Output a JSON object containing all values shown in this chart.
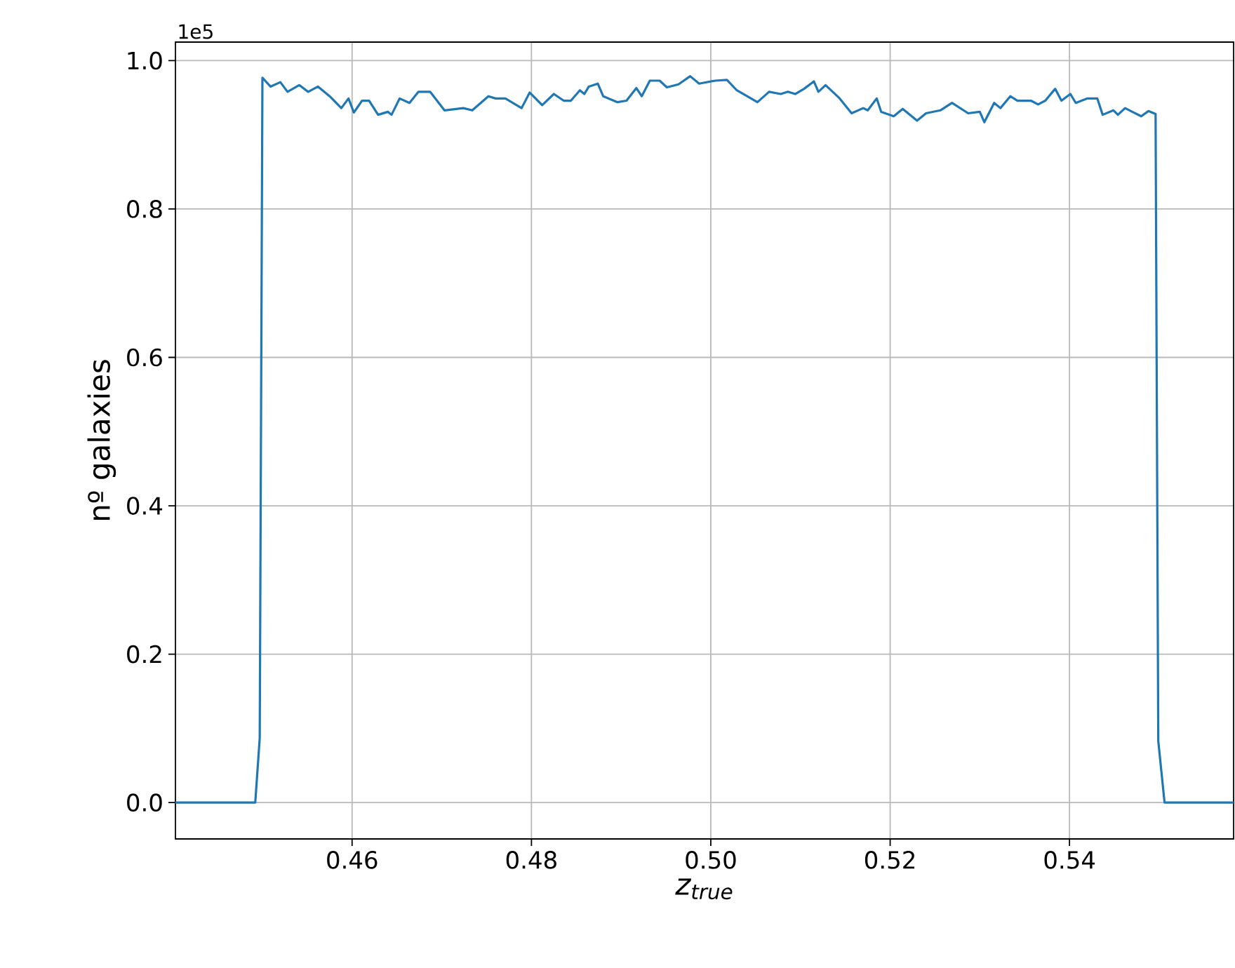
{
  "chart_data": {
    "type": "line",
    "xlabel": "z$_{true}$",
    "ylabel": "nº galaxies",
    "annotations": [
      "1e5"
    ],
    "xlim": [
      0.4403,
      0.5583
    ],
    "ylim": [
      -0.049,
      1.025
    ],
    "xticks": [
      0.46,
      0.48,
      {
        "value": 0.5,
        "label": "0.50"
      },
      0.52,
      0.54
    ],
    "yticks": [
      {
        "value": 0,
        "label": "0.0"
      },
      0.2,
      0.4,
      0.6,
      0.8,
      {
        "value": 1,
        "label": "1.0"
      }
    ],
    "grid": true,
    "series": [
      {
        "color": "#1f77b4",
        "x": [
          0.4403,
          0.4492,
          0.4497,
          0.45,
          0.4509,
          0.452,
          0.4528,
          0.4541,
          0.4551,
          0.4562,
          0.4575,
          0.4588,
          0.4596,
          0.4602,
          0.4611,
          0.4619,
          0.4629,
          0.464,
          0.4644,
          0.4653,
          0.4664,
          0.4674,
          0.4687,
          0.4703,
          0.4724,
          0.4734,
          0.4752,
          0.476,
          0.4771,
          0.4789,
          0.4798,
          0.4812,
          0.4825,
          0.4836,
          0.4844,
          0.4854,
          0.4859,
          0.4864,
          0.4874,
          0.488,
          0.4896,
          0.4906,
          0.4917,
          0.4923,
          0.4932,
          0.4943,
          0.4951,
          0.4964,
          0.4977,
          0.4987,
          0.5005,
          0.5018,
          0.5029,
          0.5052,
          0.5065,
          0.5078,
          0.5086,
          0.5094,
          0.5104,
          0.5115,
          0.512,
          0.5128,
          0.5143,
          0.5157,
          0.517,
          0.5175,
          0.5185,
          0.519,
          0.5204,
          0.5214,
          0.523,
          0.524,
          0.5256,
          0.5269,
          0.5287,
          0.53,
          0.5305,
          0.5316,
          0.5323,
          0.5334,
          0.5342,
          0.5357,
          0.5365,
          0.5373,
          0.5384,
          0.5391,
          0.5401,
          0.5407,
          0.542,
          0.5431,
          0.5437,
          0.5449,
          0.5454,
          0.5462,
          0.547,
          0.548,
          0.5488,
          0.5496,
          0.5499,
          0.5506,
          0.5583
        ],
        "values": [
          0,
          0,
          0.087,
          0.977,
          0.965,
          0.971,
          0.958,
          0.967,
          0.958,
          0.965,
          0.952,
          0.936,
          0.949,
          0.93,
          0.946,
          0.946,
          0.927,
          0.931,
          0.927,
          0.949,
          0.943,
          0.958,
          0.958,
          0.933,
          0.936,
          0.933,
          0.952,
          0.949,
          0.949,
          0.936,
          0.957,
          0.94,
          0.955,
          0.946,
          0.946,
          0.96,
          0.955,
          0.965,
          0.969,
          0.952,
          0.944,
          0.946,
          0.963,
          0.952,
          0.973,
          0.973,
          0.964,
          0.968,
          0.979,
          0.969,
          0.973,
          0.974,
          0.96,
          0.944,
          0.958,
          0.955,
          0.958,
          0.955,
          0.962,
          0.972,
          0.958,
          0.967,
          0.95,
          0.929,
          0.936,
          0.933,
          0.949,
          0.931,
          0.925,
          0.935,
          0.919,
          0.929,
          0.933,
          0.943,
          0.929,
          0.931,
          0.917,
          0.943,
          0.936,
          0.952,
          0.946,
          0.946,
          0.941,
          0.946,
          0.962,
          0.946,
          0.955,
          0.943,
          0.949,
          0.949,
          0.927,
          0.933,
          0.927,
          0.936,
          0.931,
          0.925,
          0.932,
          0.928,
          0.083,
          0,
          0
        ]
      }
    ]
  }
}
